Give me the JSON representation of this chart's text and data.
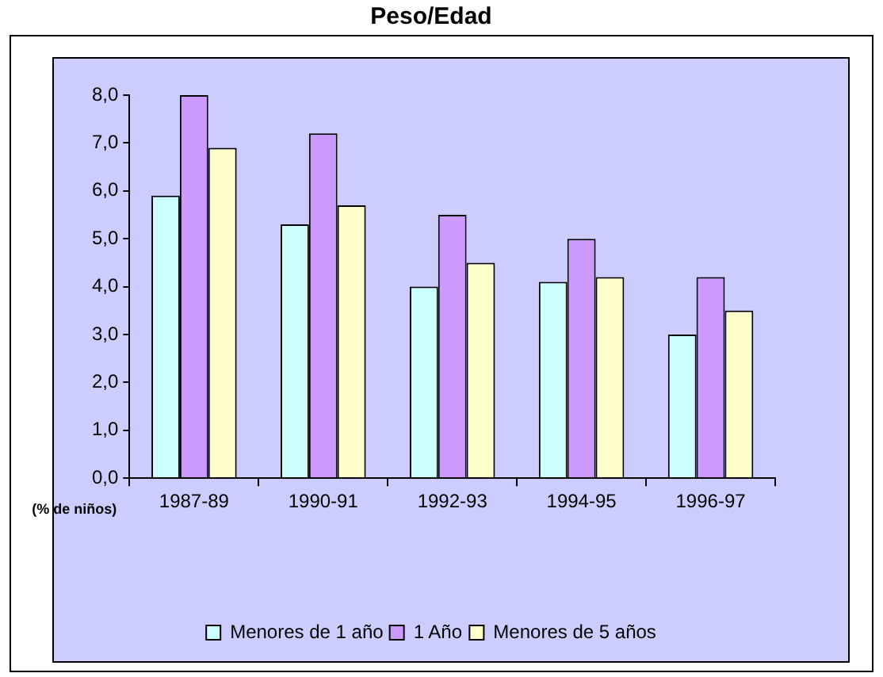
{
  "chart_data": {
    "type": "bar",
    "title": "Peso/Edad",
    "ylabel": "(% de niños)",
    "categories": [
      "1987-89",
      "1990-91",
      "1992-93",
      "1994-95",
      "1996-97"
    ],
    "series": [
      {
        "name": "Menores de 1 año",
        "color": "#ccffff",
        "values": [
          5.9,
          5.3,
          4.0,
          4.1,
          3.0
        ]
      },
      {
        "name": "1 Año",
        "color": "#cc99ff",
        "values": [
          8.0,
          7.2,
          5.5,
          5.0,
          4.2
        ]
      },
      {
        "name": "Menores de 5 años",
        "color": "#ffffcc",
        "values": [
          6.9,
          5.7,
          4.5,
          4.2,
          3.5
        ]
      }
    ],
    "ylim": [
      0,
      8
    ],
    "yticks": [
      {
        "value": 0,
        "label": "0,0"
      },
      {
        "value": 1,
        "label": "1,0"
      },
      {
        "value": 2,
        "label": "2,0"
      },
      {
        "value": 3,
        "label": "3,0"
      },
      {
        "value": 4,
        "label": "4,0"
      },
      {
        "value": 5,
        "label": "5,0"
      },
      {
        "value": 6,
        "label": "6,0"
      },
      {
        "value": 7,
        "label": "7,0"
      },
      {
        "value": 8,
        "label": "8,0"
      }
    ],
    "grid": false,
    "legend": "bottom"
  }
}
